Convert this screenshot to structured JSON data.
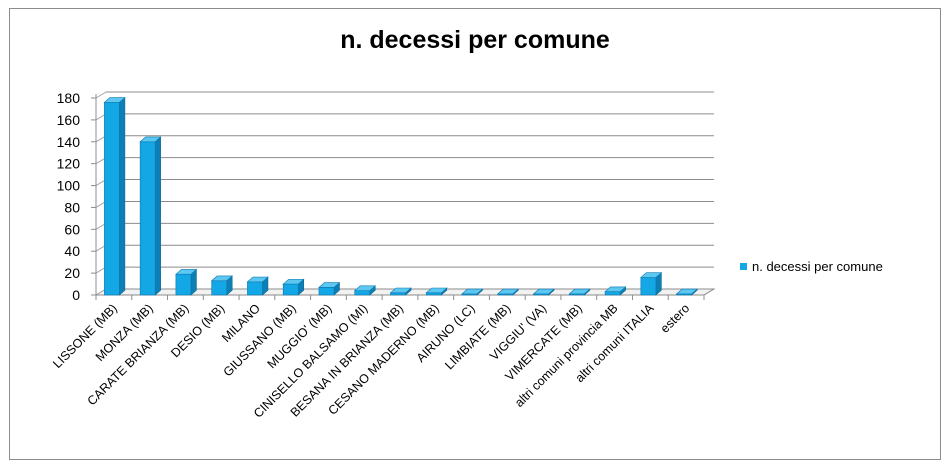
{
  "chart_data": {
    "type": "bar",
    "title": "n. decessi per comune",
    "xlabel": "",
    "ylabel": "",
    "ylim": [
      0,
      180
    ],
    "yticks": [
      0,
      20,
      40,
      60,
      80,
      100,
      120,
      140,
      160,
      180
    ],
    "grid": true,
    "legend_position": "right",
    "color": "#14a7e6",
    "categories": [
      "LISSONE (MB)",
      "MONZA (MB)",
      "CARATE BRIANZA (MB)",
      "DESIO (MB)",
      "MILANO",
      "GIUSSANO (MB)",
      "MUGGIO' (MB)",
      "CINISELLO BALSAMO (MI)",
      "BESANA IN BRIANZA (MB)",
      "CESANO MADERNO (MB)",
      "AIRUNO (LC)",
      "LIMBIATE (MB)",
      "VIGGIU' (VA)",
      "VIMERCATE (MB)",
      "altri comuni provincia MB",
      "altri comuni ITALIA",
      "estero"
    ],
    "series": [
      {
        "name": "n. decessi per comune",
        "values": [
          176,
          140,
          19,
          13,
          12,
          10,
          7,
          4,
          2,
          2,
          1,
          1,
          1,
          1,
          3,
          16,
          1
        ]
      }
    ]
  }
}
